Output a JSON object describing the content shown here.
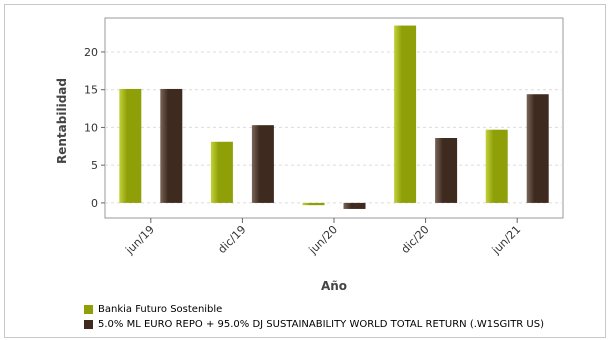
{
  "chart_data": {
    "type": "bar",
    "categories": [
      "jun/19",
      "dic/19",
      "jun/20",
      "dic/20",
      "jun/21"
    ],
    "series": [
      {
        "name": "Bankia Futuro Sostenible",
        "values": [
          15.1,
          8.1,
          -0.3,
          23.5,
          9.7
        ],
        "color": "#8f9f08"
      },
      {
        "name": "5.0% ML EURO REPO + 95.0% DJ SUSTAINABILITY WORLD TOTAL RETURN (.W1SGITR US)",
        "values": [
          15.1,
          10.3,
          -0.8,
          8.6,
          14.4
        ],
        "color": "#3e2a1f"
      }
    ],
    "xlabel": "Año",
    "ylabel": "Rentabilidad",
    "ylim": [
      -2.0,
      24.5
    ],
    "yticks": [
      0,
      5,
      10,
      15,
      20
    ],
    "grid": true,
    "legend_position": "bottom-left"
  }
}
